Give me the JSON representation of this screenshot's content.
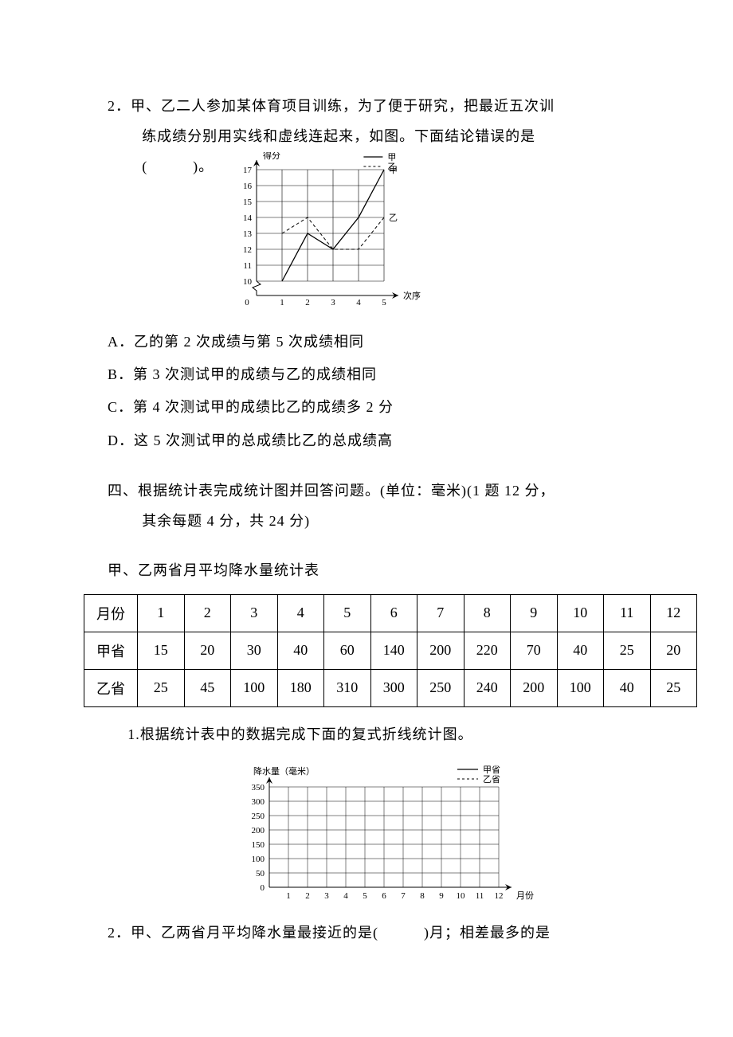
{
  "q2": {
    "number": "2．",
    "stem_l1": "甲、乙二人参加某体育项目训练，为了便于研究，把最近五次训",
    "stem_l2": "练成绩分别用实线和虚线连起来，如图。下面结论错误的是",
    "stem_l3_prefix": "(　　　)。",
    "chart": {
      "y_label": "得分",
      "x_label": "次序",
      "legend_jia": "甲",
      "legend_yi": "乙",
      "y_ticks": [
        "10",
        "11",
        "12",
        "13",
        "14",
        "15",
        "16",
        "17"
      ],
      "x_ticks": [
        "0",
        "1",
        "2",
        "3",
        "4",
        "5"
      ],
      "jia_label": "甲",
      "yi_label": "乙",
      "jia_points": [
        [
          1,
          10
        ],
        [
          2,
          13
        ],
        [
          3,
          12
        ],
        [
          4,
          14
        ],
        [
          5,
          17
        ]
      ],
      "yi_points": [
        [
          1,
          13
        ],
        [
          2,
          14
        ],
        [
          3,
          12
        ],
        [
          4,
          12
        ],
        [
          5,
          14
        ]
      ],
      "grid_color": "#000000",
      "solid_color": "#000000",
      "dash_color": "#000000"
    },
    "opts": {
      "A": "A．乙的第 2 次成绩与第 5 次成绩相同",
      "B": "B．第 3 次测试甲的成绩与乙的成绩相同",
      "C": "C．第 4 次测试甲的成绩比乙的成绩多 2 分",
      "D": "D．这 5 次测试甲的总成绩比乙的总成绩高"
    }
  },
  "sec4": {
    "head_l1": "四、根据统计表完成统计图并回答问题。(单位：毫米)(1 题 12 分，",
    "head_l2": "其余每题 4 分，共 24 分)",
    "table_title": "甲、乙两省月平均降水量统计表",
    "table": {
      "row1": [
        "月份",
        "1",
        "2",
        "3",
        "4",
        "5",
        "6",
        "7",
        "8",
        "9",
        "10",
        "11",
        "12"
      ],
      "row2": [
        "甲省",
        "15",
        "20",
        "30",
        "40",
        "60",
        "140",
        "200",
        "220",
        "70",
        "40",
        "25",
        "20"
      ],
      "row3": [
        "乙省",
        "25",
        "45",
        "100",
        "180",
        "310",
        "300",
        "250",
        "240",
        "200",
        "100",
        "40",
        "25"
      ]
    },
    "q1": "1.根据统计表中的数据完成下面的复式折线统计图。",
    "chart2": {
      "y_label": "降水量（毫米）",
      "x_label": "月份",
      "legend_jia": "甲省",
      "legend_yi": "乙省",
      "y_ticks": [
        "0",
        "50",
        "100",
        "150",
        "200",
        "250",
        "300",
        "350"
      ],
      "x_ticks": [
        "1",
        "2",
        "3",
        "4",
        "5",
        "6",
        "7",
        "8",
        "9",
        "10",
        "11",
        "12"
      ]
    },
    "q2": "2．甲、乙两省月平均降水量最接近的是(　　　)月；相差最多的是"
  }
}
